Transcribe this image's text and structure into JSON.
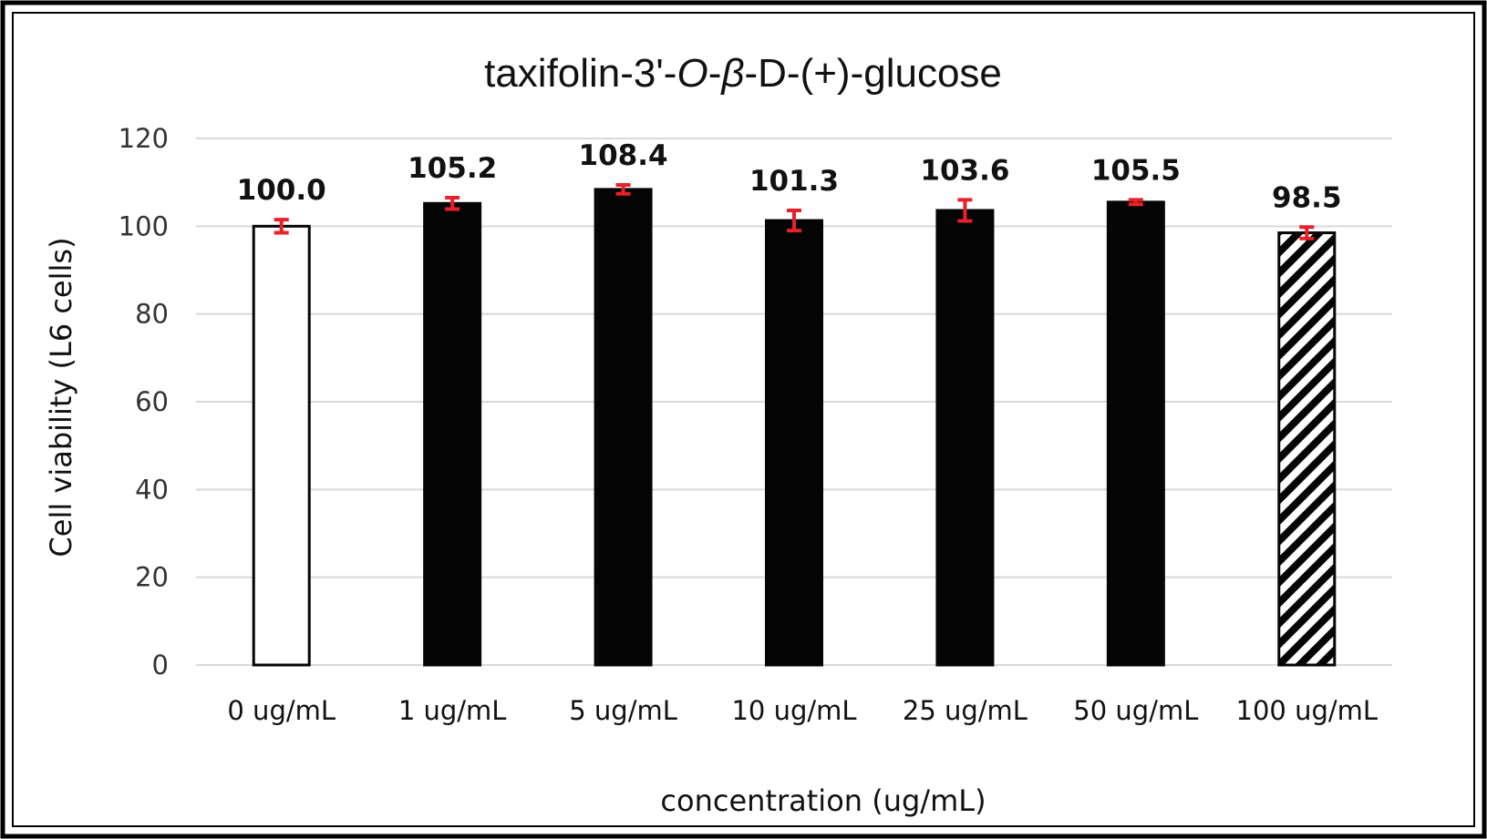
{
  "chart_data": {
    "type": "bar",
    "title": "taxifolin-3'-O-β-D-(+)-glucose",
    "title_parts": [
      {
        "text": "taxifolin-3'-",
        "italic": false
      },
      {
        "text": "O",
        "italic": true
      },
      {
        "text": "-",
        "italic": false
      },
      {
        "text": "β",
        "italic": true
      },
      {
        "text": "-D-(+)-glucose",
        "italic": false
      }
    ],
    "xlabel": "concentration (ug/mL)",
    "ylabel": "Cell viability (L6 cells)",
    "ylim": [
      0,
      120
    ],
    "yticks": [
      0,
      20,
      40,
      60,
      80,
      100,
      120
    ],
    "grid": true,
    "categories": [
      "0 ug/mL",
      "1 ug/mL",
      "5 ug/mL",
      "10 ug/mL",
      "25 ug/mL",
      "50 ug/mL",
      "100 ug/mL"
    ],
    "values": [
      100.0,
      105.2,
      108.4,
      101.3,
      103.6,
      105.5,
      98.5
    ],
    "value_labels": [
      "100.0",
      "105.2",
      "108.4",
      "101.3",
      "103.6",
      "105.5",
      "98.5"
    ],
    "errors": [
      1.5,
      1.3,
      1.0,
      2.3,
      2.4,
      0.5,
      1.3
    ],
    "bar_styles": [
      "white",
      "black",
      "black",
      "black",
      "black",
      "black",
      "hatched"
    ],
    "colors": {
      "bar_fill": "#050505",
      "bar_outline": "#050505",
      "error_bar": "#e8202a",
      "grid": "#d9d9d9",
      "frame": "#000000"
    }
  }
}
